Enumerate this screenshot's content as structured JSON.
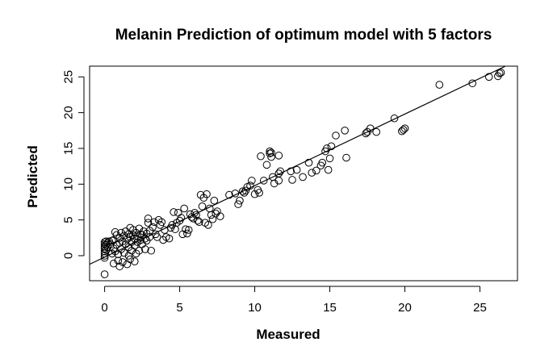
{
  "chart_data": {
    "type": "scatter",
    "title": "Melanin Prediction of optimum model with 5 factors",
    "xlabel": "Measured",
    "ylabel": "Predicted",
    "xlim": [
      -1.0,
      27.5
    ],
    "ylim": [
      -3.5,
      26.5
    ],
    "xticks": [
      "0",
      "5",
      "10",
      "15",
      "20",
      "25"
    ],
    "yticks": [
      "0",
      "5",
      "10",
      "15",
      "20",
      "25"
    ],
    "xtick_values": [
      0,
      5,
      10,
      15,
      20,
      25
    ],
    "ytick_values": [
      0,
      5,
      10,
      15,
      20,
      25
    ],
    "marker": "open-circle",
    "fit_line": {
      "intercept": -0.2,
      "slope": 1.0
    },
    "grid": false,
    "legend": "none",
    "points": [
      [
        0.0,
        -2.6
      ],
      [
        0.0,
        -0.3
      ],
      [
        0.0,
        0.0
      ],
      [
        0.0,
        0.3
      ],
      [
        0.0,
        0.6
      ],
      [
        0.0,
        1.0
      ],
      [
        0.0,
        1.3
      ],
      [
        0.0,
        1.6
      ],
      [
        0.0,
        1.9
      ],
      [
        0.1,
        0.8
      ],
      [
        0.1,
        1.5
      ],
      [
        0.1,
        2.0
      ],
      [
        0.2,
        1.2
      ],
      [
        0.2,
        1.8
      ],
      [
        0.3,
        2.0
      ],
      [
        0.4,
        1.6
      ],
      [
        0.5,
        0.3
      ],
      [
        0.5,
        2.1
      ],
      [
        0.6,
        -1.1
      ],
      [
        0.6,
        1.0
      ],
      [
        0.6,
        2.2
      ],
      [
        0.7,
        0.6
      ],
      [
        0.7,
        3.3
      ],
      [
        0.8,
        1.5
      ],
      [
        0.8,
        2.9
      ],
      [
        0.9,
        -0.7
      ],
      [
        0.9,
        0.2
      ],
      [
        1.0,
        2.5
      ],
      [
        1.0,
        1.8
      ],
      [
        1.0,
        -1.5
      ],
      [
        1.1,
        0.9
      ],
      [
        1.1,
        3.2
      ],
      [
        1.2,
        2.0
      ],
      [
        1.2,
        -0.9
      ],
      [
        1.3,
        0.4
      ],
      [
        1.3,
        2.8
      ],
      [
        1.4,
        1.6
      ],
      [
        1.4,
        3.4
      ],
      [
        1.5,
        -1.2
      ],
      [
        1.5,
        2.3
      ],
      [
        1.6,
        0.0
      ],
      [
        1.6,
        3.0
      ],
      [
        1.6,
        1.2
      ],
      [
        1.7,
        2.6
      ],
      [
        1.7,
        -0.5
      ],
      [
        1.7,
        3.9
      ],
      [
        1.8,
        1.9
      ],
      [
        1.8,
        0.7
      ],
      [
        1.9,
        2.9
      ],
      [
        1.9,
        3.6
      ],
      [
        2.0,
        -0.8
      ],
      [
        2.0,
        1.4
      ],
      [
        2.0,
        2.4
      ],
      [
        2.1,
        3.2
      ],
      [
        2.1,
        0.3
      ],
      [
        2.2,
        2.7
      ],
      [
        2.2,
        1.9
      ],
      [
        2.3,
        3.8
      ],
      [
        2.3,
        0.7
      ],
      [
        2.4,
        2.2
      ],
      [
        2.4,
        3.0
      ],
      [
        2.5,
        1.6
      ],
      [
        2.5,
        2.9
      ],
      [
        2.6,
        3.4
      ],
      [
        2.7,
        2.4
      ],
      [
        2.7,
        0.9
      ],
      [
        2.8,
        3.1
      ],
      [
        2.8,
        2.1
      ],
      [
        2.9,
        4.6
      ],
      [
        2.9,
        5.2
      ],
      [
        3.0,
        2.6
      ],
      [
        3.0,
        3.5
      ],
      [
        3.1,
        0.7
      ],
      [
        3.2,
        4.0
      ],
      [
        3.3,
        4.7
      ],
      [
        3.4,
        3.0
      ],
      [
        3.5,
        2.6
      ],
      [
        3.6,
        5.0
      ],
      [
        3.7,
        4.3
      ],
      [
        3.8,
        4.7
      ],
      [
        3.9,
        2.2
      ],
      [
        4.0,
        3.6
      ],
      [
        4.1,
        2.6
      ],
      [
        4.3,
        2.4
      ],
      [
        4.4,
        3.9
      ],
      [
        4.5,
        4.3
      ],
      [
        4.6,
        6.1
      ],
      [
        4.7,
        3.7
      ],
      [
        4.8,
        4.6
      ],
      [
        4.9,
        6.0
      ],
      [
        5.0,
        4.9
      ],
      [
        5.1,
        5.3
      ],
      [
        5.2,
        3.0
      ],
      [
        5.3,
        6.6
      ],
      [
        5.4,
        3.7
      ],
      [
        5.5,
        3.1
      ],
      [
        5.6,
        3.6
      ],
      [
        5.7,
        5.8
      ],
      [
        5.8,
        5.4
      ],
      [
        5.9,
        5.2
      ],
      [
        6.0,
        6.0
      ],
      [
        6.1,
        5.7
      ],
      [
        6.2,
        4.9
      ],
      [
        6.3,
        4.7
      ],
      [
        6.4,
        8.5
      ],
      [
        6.5,
        6.9
      ],
      [
        6.6,
        8.1
      ],
      [
        6.7,
        4.6
      ],
      [
        6.8,
        8.6
      ],
      [
        6.9,
        4.3
      ],
      [
        7.0,
        6.6
      ],
      [
        7.1,
        5.7
      ],
      [
        7.2,
        5.1
      ],
      [
        7.3,
        7.7
      ],
      [
        7.4,
        5.9
      ],
      [
        7.5,
        6.2
      ],
      [
        7.7,
        5.5
      ],
      [
        8.3,
        8.5
      ],
      [
        8.7,
        8.7
      ],
      [
        8.9,
        7.2
      ],
      [
        9.0,
        7.7
      ],
      [
        9.2,
        9.0
      ],
      [
        9.3,
        8.8
      ],
      [
        9.4,
        9.1
      ],
      [
        9.5,
        9.6
      ],
      [
        9.7,
        9.8
      ],
      [
        9.8,
        10.5
      ],
      [
        10.0,
        8.6
      ],
      [
        10.2,
        9.2
      ],
      [
        10.3,
        8.8
      ],
      [
        10.4,
        13.9
      ],
      [
        10.6,
        10.5
      ],
      [
        10.8,
        12.7
      ],
      [
        11.0,
        14.3
      ],
      [
        11.0,
        14.6
      ],
      [
        11.1,
        14.4
      ],
      [
        11.1,
        13.8
      ],
      [
        11.2,
        11.0
      ],
      [
        11.3,
        10.1
      ],
      [
        11.6,
        11.5
      ],
      [
        11.6,
        10.5
      ],
      [
        11.6,
        14.0
      ],
      [
        11.7,
        11.8
      ],
      [
        12.4,
        11.8
      ],
      [
        12.5,
        10.6
      ],
      [
        12.8,
        12.0
      ],
      [
        13.2,
        11.0
      ],
      [
        13.6,
        13.0
      ],
      [
        13.8,
        11.6
      ],
      [
        14.1,
        11.9
      ],
      [
        14.4,
        12.6
      ],
      [
        14.5,
        13.0
      ],
      [
        14.7,
        14.6
      ],
      [
        14.8,
        15.0
      ],
      [
        14.9,
        12.0
      ],
      [
        15.0,
        13.6
      ],
      [
        15.1,
        15.3
      ],
      [
        15.4,
        16.8
      ],
      [
        16.0,
        17.5
      ],
      [
        16.1,
        13.7
      ],
      [
        17.4,
        17.1
      ],
      [
        17.5,
        17.3
      ],
      [
        17.7,
        17.8
      ],
      [
        18.1,
        17.3
      ],
      [
        19.3,
        19.2
      ],
      [
        19.8,
        17.4
      ],
      [
        19.9,
        17.6
      ],
      [
        20.0,
        17.8
      ],
      [
        22.3,
        23.9
      ],
      [
        24.5,
        24.1
      ],
      [
        25.6,
        25.0
      ],
      [
        26.2,
        25.1
      ],
      [
        26.3,
        25.5
      ],
      [
        26.4,
        25.6
      ]
    ]
  }
}
